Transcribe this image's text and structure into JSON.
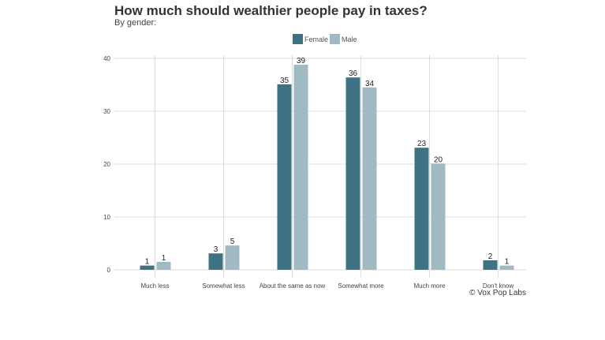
{
  "chart_data": {
    "type": "bar",
    "title": "How much should wealthier people pay in taxes?",
    "subtitle": "By gender:",
    "caption": "© Vox Pop Labs",
    "xlabel": "",
    "ylabel": "",
    "ylim": [
      0,
      40
    ],
    "yticks": [
      0,
      10,
      20,
      30,
      40
    ],
    "grid": true,
    "legend_position": "top",
    "categories": [
      "Much less",
      "Somewhat less",
      "About the same as now",
      "Somewhat more",
      "Much more",
      "Don't know"
    ],
    "series": [
      {
        "name": "Female",
        "color": "#3f7384",
        "values": [
          0.8,
          3.1,
          35.1,
          36.4,
          23.1,
          1.8
        ],
        "labels": [
          "1",
          "3",
          "35",
          "36",
          "23",
          "2"
        ]
      },
      {
        "name": "Male",
        "color": "#9fbac3",
        "values": [
          1.5,
          4.6,
          38.8,
          34.5,
          20.1,
          0.8
        ],
        "labels": [
          "1",
          "5",
          "39",
          "34",
          "20",
          "1"
        ]
      }
    ]
  }
}
